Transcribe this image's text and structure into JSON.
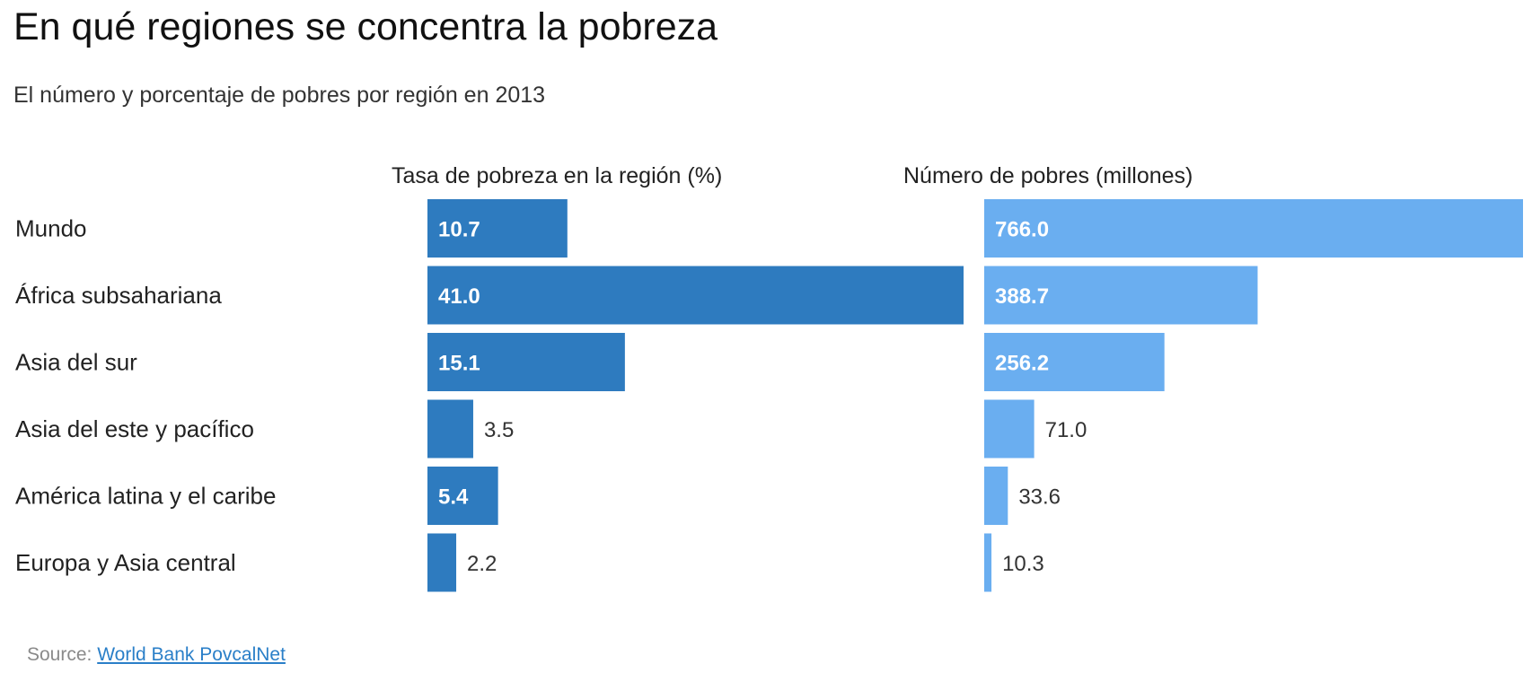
{
  "header": {
    "title": "En qué regiones se concentra la pobreza",
    "subtitle": "El número y porcentaje de pobres por región en 2013"
  },
  "chart_data": [
    {
      "type": "bar",
      "orientation": "horizontal",
      "title": "Tasa de pobreza en la región (%)",
      "categories": [
        "Mundo",
        "África subsahariana",
        "Asia del sur",
        "Asia del este y pacífico",
        "América latina y el caribe",
        "Europa y Asia central"
      ],
      "values": [
        10.7,
        41.0,
        15.1,
        3.5,
        5.4,
        2.2
      ],
      "value_labels": [
        "10.7",
        "41.0",
        "15.1",
        "3.5",
        "5.4",
        "2.2"
      ],
      "xlim": [
        0,
        41.0
      ],
      "grid": false,
      "color": "#2e7bbf"
    },
    {
      "type": "bar",
      "orientation": "horizontal",
      "title": "Número de pobres (millones)",
      "categories": [
        "Mundo",
        "África subsahariana",
        "Asia del sur",
        "Asia del este y pacífico",
        "América latina y el caribe",
        "Europa y Asia central"
      ],
      "values": [
        766.0,
        388.7,
        256.2,
        71.0,
        33.6,
        10.3
      ],
      "value_labels": [
        "766.0",
        "388.7",
        "256.2",
        "71.0",
        "33.6",
        "10.3"
      ],
      "xlim": [
        0,
        766.0
      ],
      "grid": false,
      "color": "#6aaef0"
    }
  ],
  "footer": {
    "source_prefix": "Source:",
    "source_link": "World Bank PovcalNet"
  }
}
